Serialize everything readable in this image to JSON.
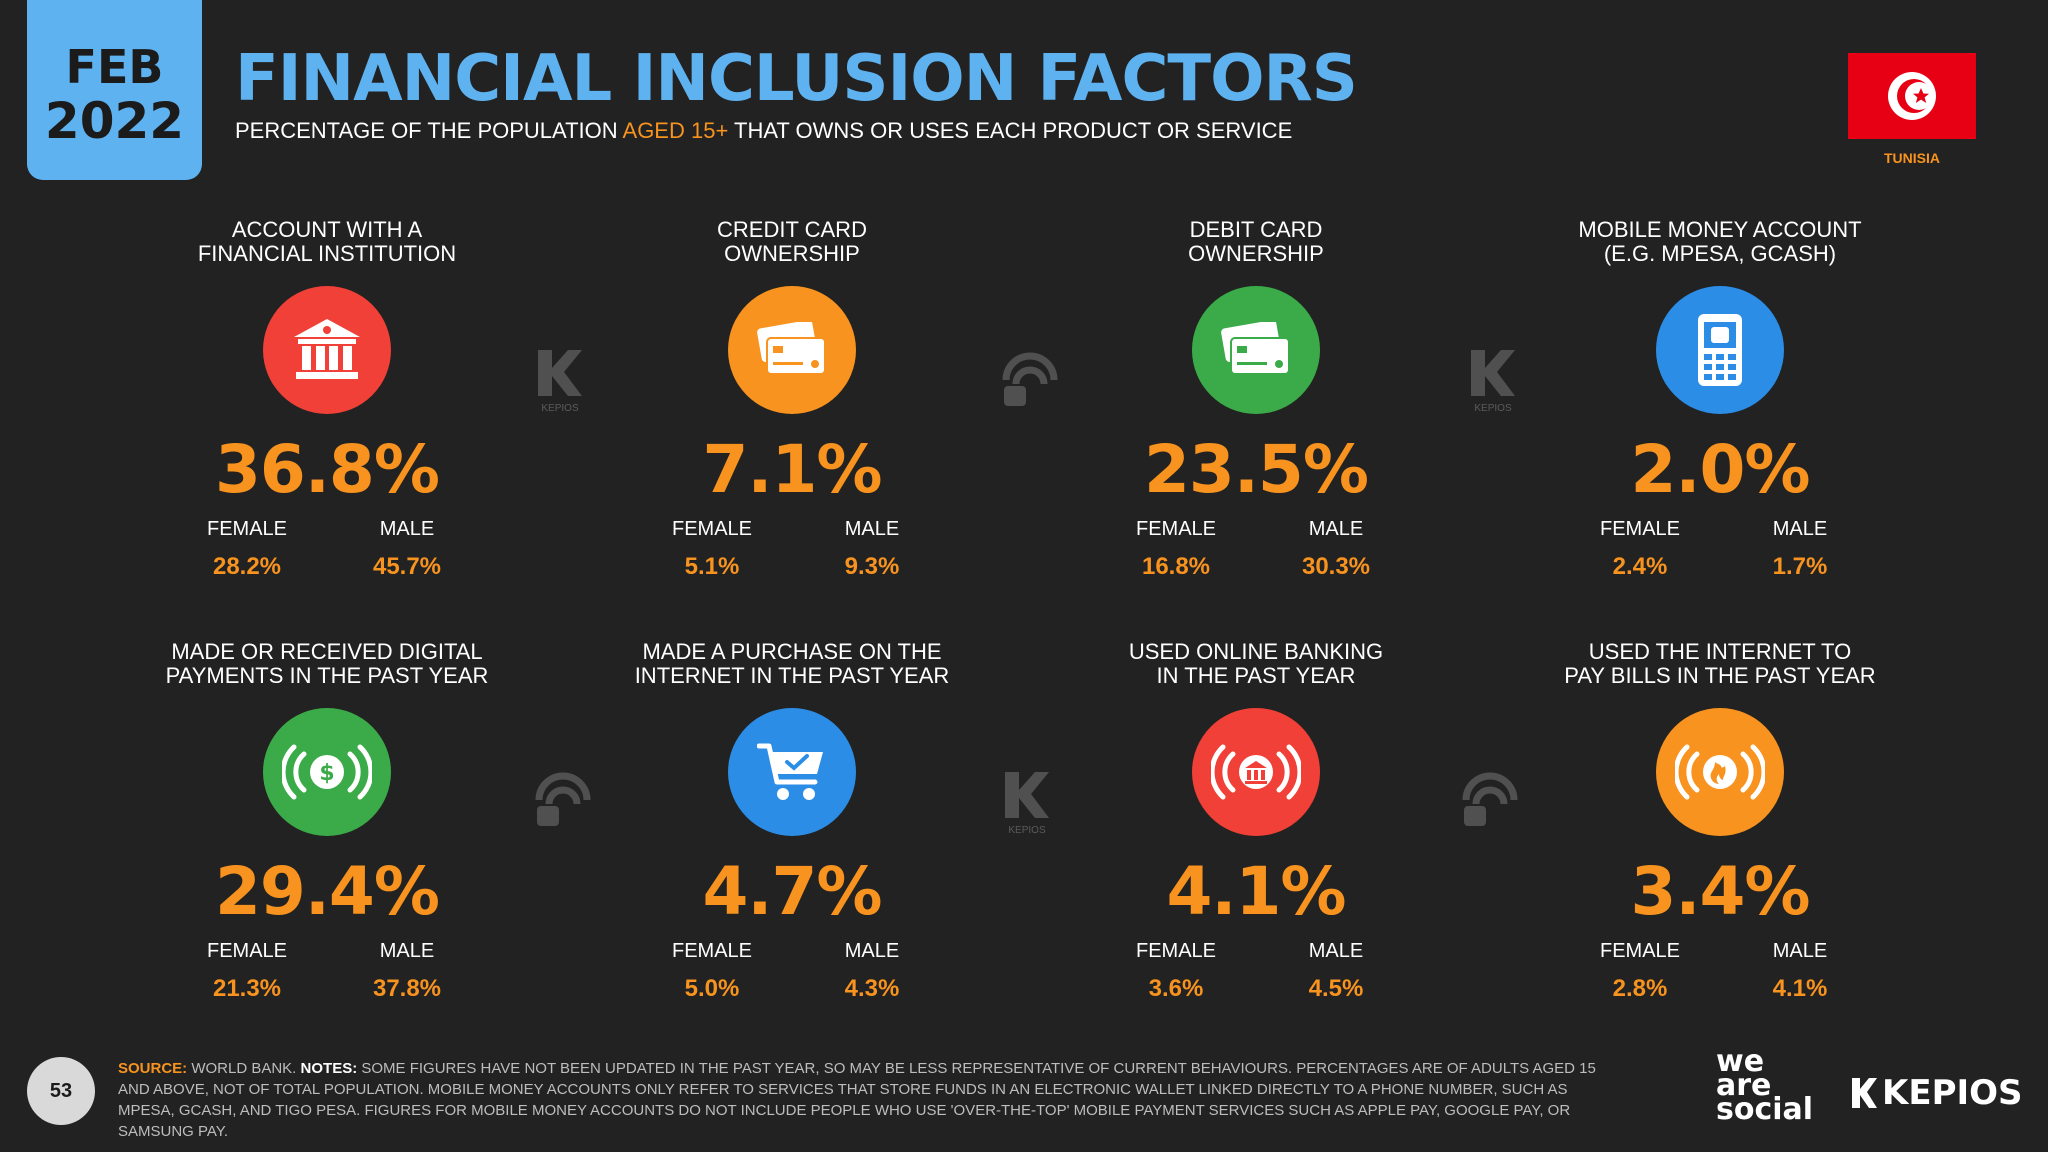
{
  "date": {
    "month": "FEB",
    "year": "2022"
  },
  "header": {
    "title": "FINANCIAL INCLUSION FACTORS",
    "subtitle_pre": "PERCENTAGE OF THE POPULATION ",
    "subtitle_highlight": "AGED 15+",
    "subtitle_post": " THAT OWNS OR USES EACH PRODUCT OR SERVICE"
  },
  "country": {
    "name": "TUNISIA",
    "flag_color": "#e70013"
  },
  "labels": {
    "female": "FEMALE",
    "male": "MALE"
  },
  "cards": [
    {
      "line1": "ACCOUNT WITH A",
      "line2": "FINANCIAL INSTITUTION",
      "value": "36.8%",
      "female": "28.2%",
      "male": "45.7%",
      "color": "#f04037",
      "icon": "bank-icon"
    },
    {
      "line1": "CREDIT CARD",
      "line2": "OWNERSHIP",
      "value": "7.1%",
      "female": "5.1%",
      "male": "9.3%",
      "color": "#f7931e",
      "icon": "credit-card-icon"
    },
    {
      "line1": "DEBIT CARD",
      "line2": "OWNERSHIP",
      "value": "23.5%",
      "female": "16.8%",
      "male": "30.3%",
      "color": "#3bab49",
      "icon": "debit-card-icon"
    },
    {
      "line1": "MOBILE MONEY ACCOUNT",
      "line2": "(E.G. MPESA, GCASH)",
      "value": "2.0%",
      "female": "2.4%",
      "male": "1.7%",
      "color": "#2b8de6",
      "icon": "mobile-money-icon"
    },
    {
      "line1": "MADE OR RECEIVED DIGITAL",
      "line2": "PAYMENTS IN THE PAST YEAR",
      "value": "29.4%",
      "female": "21.3%",
      "male": "37.8%",
      "color": "#3bab49",
      "icon": "digital-payment-icon"
    },
    {
      "line1": "MADE A PURCHASE ON THE",
      "line2": "INTERNET IN THE PAST YEAR",
      "value": "4.7%",
      "female": "5.0%",
      "male": "4.3%",
      "color": "#2b8de6",
      "icon": "shopping-cart-icon"
    },
    {
      "line1": "USED ONLINE BANKING",
      "line2": "IN THE PAST YEAR",
      "value": "4.1%",
      "female": "3.6%",
      "male": "4.5%",
      "color": "#f04037",
      "icon": "online-banking-icon"
    },
    {
      "line1": "USED THE INTERNET TO",
      "line2": "PAY BILLS IN THE PAST YEAR",
      "value": "3.4%",
      "female": "2.8%",
      "male": "4.1%",
      "color": "#f7931e",
      "icon": "bill-payment-icon"
    }
  ],
  "watermarks": {
    "kepios": "KEPIOS"
  },
  "footer": {
    "page": "53",
    "source_label": "SOURCE:",
    "source_text": " WORLD BANK. ",
    "notes_label": "NOTES:",
    "notes_text": " SOME FIGURES HAVE NOT BEEN UPDATED IN THE PAST YEAR, SO MAY BE LESS REPRESENTATIVE OF CURRENT BEHAVIOURS. PERCENTAGES ARE OF ADULTS AGED 15 AND ABOVE, NOT OF TOTAL POPULATION. MOBILE MONEY ACCOUNTS ONLY REFER TO SERVICES THAT STORE FUNDS IN AN ELECTRONIC WALLET LINKED DIRECTLY TO A PHONE NUMBER, SUCH AS MPESA, GCASH, AND TIGO PESA. FIGURES FOR MOBILE MONEY ACCOUNTS DO NOT INCLUDE PEOPLE WHO USE 'OVER-THE-TOP' MOBILE PAYMENT SERVICES SUCH AS APPLE PAY, GOOGLE PAY, OR SAMSUNG PAY.",
    "brand1_l1": "we",
    "brand1_l2": "are",
    "brand1_l3": "social",
    "brand2": "KEPIOS"
  }
}
